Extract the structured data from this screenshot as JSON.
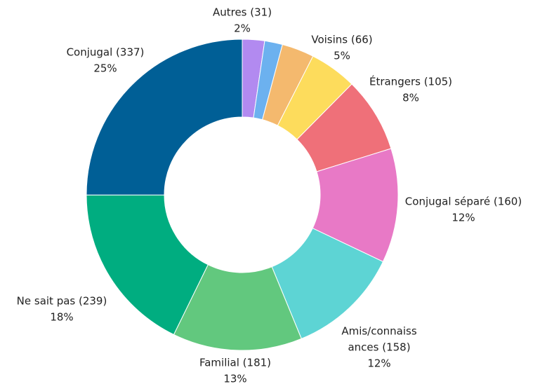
{
  "chart_data": {
    "type": "donut",
    "categories": [
      "Autres (31)",
      null,
      null,
      "Voisins (66)",
      "Étrangers (105)",
      "Conjugal séparé (160)",
      [
        "Amis/connaiss",
        "ances (158)"
      ],
      "Familial (181)",
      "Ne sait pas (239)",
      "Conjugal (337)"
    ],
    "values": [
      31,
      25,
      45,
      66,
      105,
      160,
      158,
      181,
      239,
      337
    ],
    "percent_labels": [
      "2%",
      null,
      null,
      "5%",
      "8%",
      "12%",
      "12%",
      "13%",
      "18%",
      "25%"
    ],
    "colors": [
      "#b28af0",
      "#6cb1ef",
      "#f4b96e",
      "#fddc5c",
      "#ef7079",
      "#e879c6",
      "#5dd4d4",
      "#62c87e",
      "#00ad80",
      "#005f96"
    ]
  }
}
